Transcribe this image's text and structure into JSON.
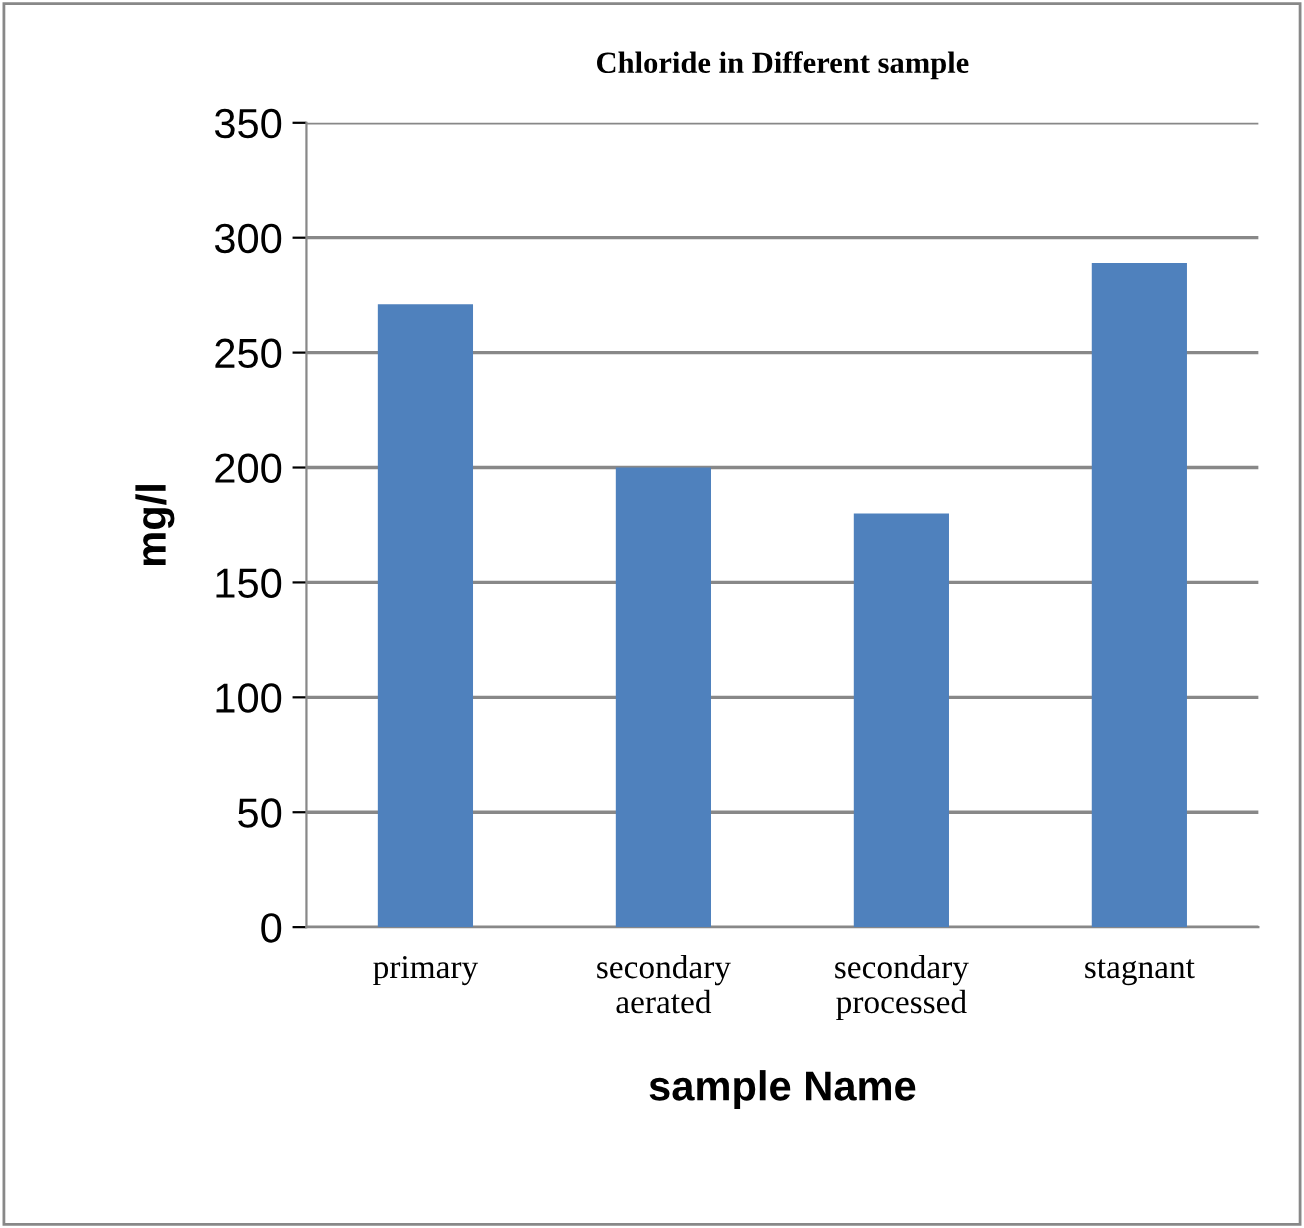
{
  "chart_data": {
    "type": "bar",
    "title": "Chloride in Different sample",
    "xlabel": "sample Name",
    "ylabel": "mg/l",
    "categories": [
      "primary",
      "secondary\naerated",
      "secondary\nprocessed",
      "stagnant"
    ],
    "values": [
      271,
      200,
      180,
      289
    ],
    "color": "#4f81bd",
    "ylim": [
      0,
      350
    ],
    "yticks": [
      0,
      50,
      100,
      150,
      200,
      250,
      300,
      350
    ],
    "grid": "y",
    "legend": false
  }
}
